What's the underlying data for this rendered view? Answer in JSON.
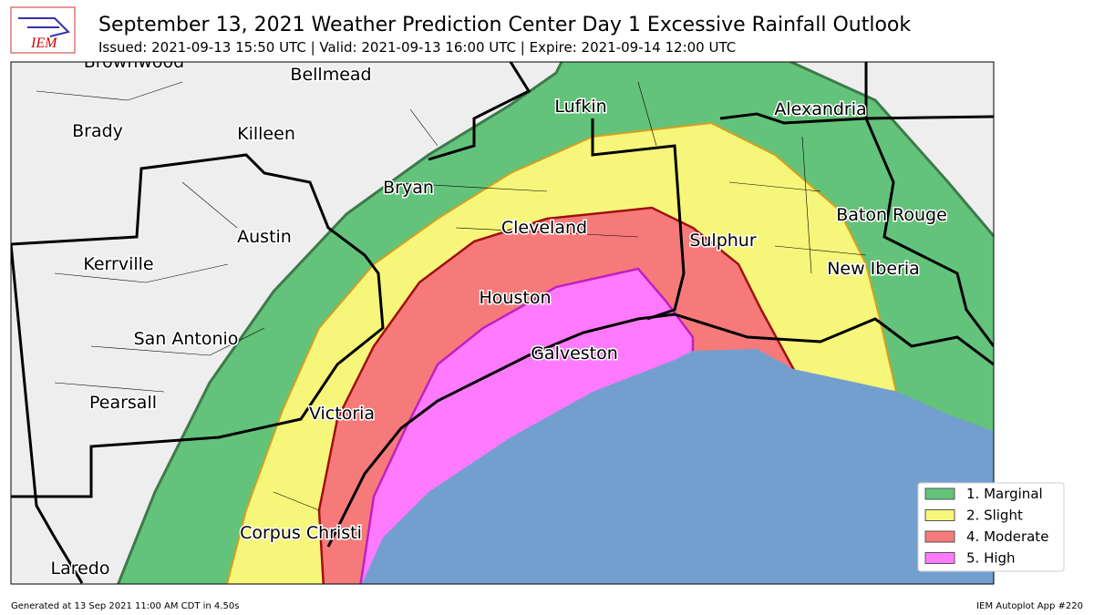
{
  "header": {
    "logo": "IEM",
    "title": "September 13, 2021 Weather Prediction Center Day 1 Excessive Rainfall Outlook",
    "subtitle": "Issued: 2021-09-13 15:50 UTC | Valid: 2021-09-13 16:00 UTC | Expire: 2021-09-14 12:00 UTC"
  },
  "map": {
    "cities": [
      {
        "label": "Brownwood"
      },
      {
        "label": "Bellmead"
      },
      {
        "label": "Lufkin"
      },
      {
        "label": "Alexandria"
      },
      {
        "label": "Brady"
      },
      {
        "label": "Killeen"
      },
      {
        "label": "Bryan"
      },
      {
        "label": "Baton Rouge"
      },
      {
        "label": "Cleveland"
      },
      {
        "label": "Austin"
      },
      {
        "label": "Sulphur"
      },
      {
        "label": "Kerrville"
      },
      {
        "label": "New Iberia"
      },
      {
        "label": "Houston"
      },
      {
        "label": "San Antonio"
      },
      {
        "label": "Galveston"
      },
      {
        "label": "Pearsall"
      },
      {
        "label": "Victoria"
      },
      {
        "label": "Corpus Christi"
      },
      {
        "label": "Laredo"
      }
    ]
  },
  "legend": {
    "items": [
      {
        "label": "1. Marginal",
        "color": "#63c37a"
      },
      {
        "label": "2. Slight",
        "color": "#f6f67a"
      },
      {
        "label": "4. Moderate",
        "color": "#f67a7a"
      },
      {
        "label": "5. High",
        "color": "#ff7aff"
      }
    ]
  },
  "footer": {
    "left": "Generated at 13 Sep 2021 11:00 AM CDT in 4.50s",
    "right": "IEM Autoplot App #220"
  }
}
